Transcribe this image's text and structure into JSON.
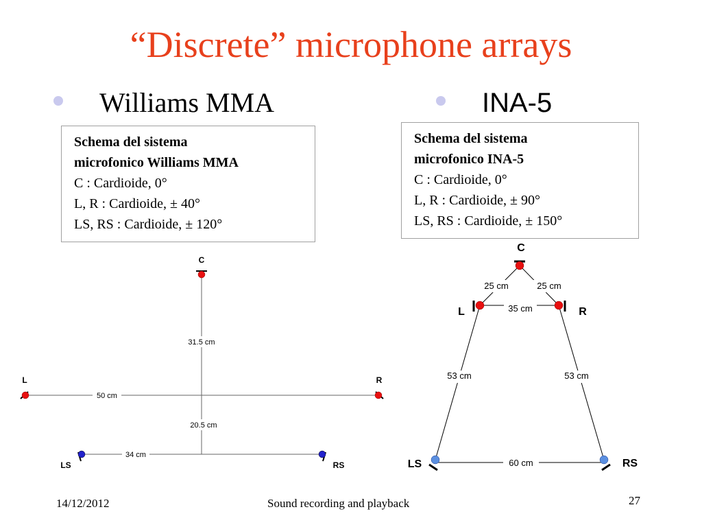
{
  "title": "“Discrete” microphone arrays",
  "bullets": {
    "left": "Williams MMA",
    "right": "INA-5"
  },
  "williams_box": {
    "heading_line1": "Schema del sistema",
    "heading_line2": "microfonico Williams MMA",
    "line1": "C : Cardioide, 0°",
    "line2": "L, R : Cardioide, ± 40°",
    "line3": "LS, RS : Cardioide,  ± 120°"
  },
  "ina5_box": {
    "heading_line1": "Schema del sistema",
    "heading_line2": "microfonico INA-5",
    "line1": "C : Cardioide, 0°",
    "line2": "L, R : Cardioide, ± 90°",
    "line3": "LS, RS : Cardioide,  ± 150°"
  },
  "williams_diagram": {
    "labels": {
      "c": "C",
      "l": "L",
      "r": "R",
      "ls": "LS",
      "rs": "RS"
    },
    "distances": {
      "c_center": "31.5 cm",
      "l_r": "50 cm",
      "center_rear": "20.5 cm",
      "ls_rs": "34 cm"
    }
  },
  "ina5_diagram": {
    "labels": {
      "c": "C",
      "l": "L",
      "r": "R",
      "ls": "LS",
      "rs": "RS"
    },
    "distances": {
      "c_l": "25 cm",
      "c_r": "25 cm",
      "l_r": "35 cm",
      "l_ls": "53 cm",
      "r_rs": "53 cm",
      "ls_rs": "60 cm"
    }
  },
  "colors": {
    "front_mic": "#e81010",
    "rear_mic_williams": "#2222cc",
    "rear_mic_ina5": "#5b8fe0",
    "title": "#e8401c"
  },
  "footer": {
    "date": "14/12/2012",
    "center": "Sound recording and playback",
    "page": "27"
  }
}
